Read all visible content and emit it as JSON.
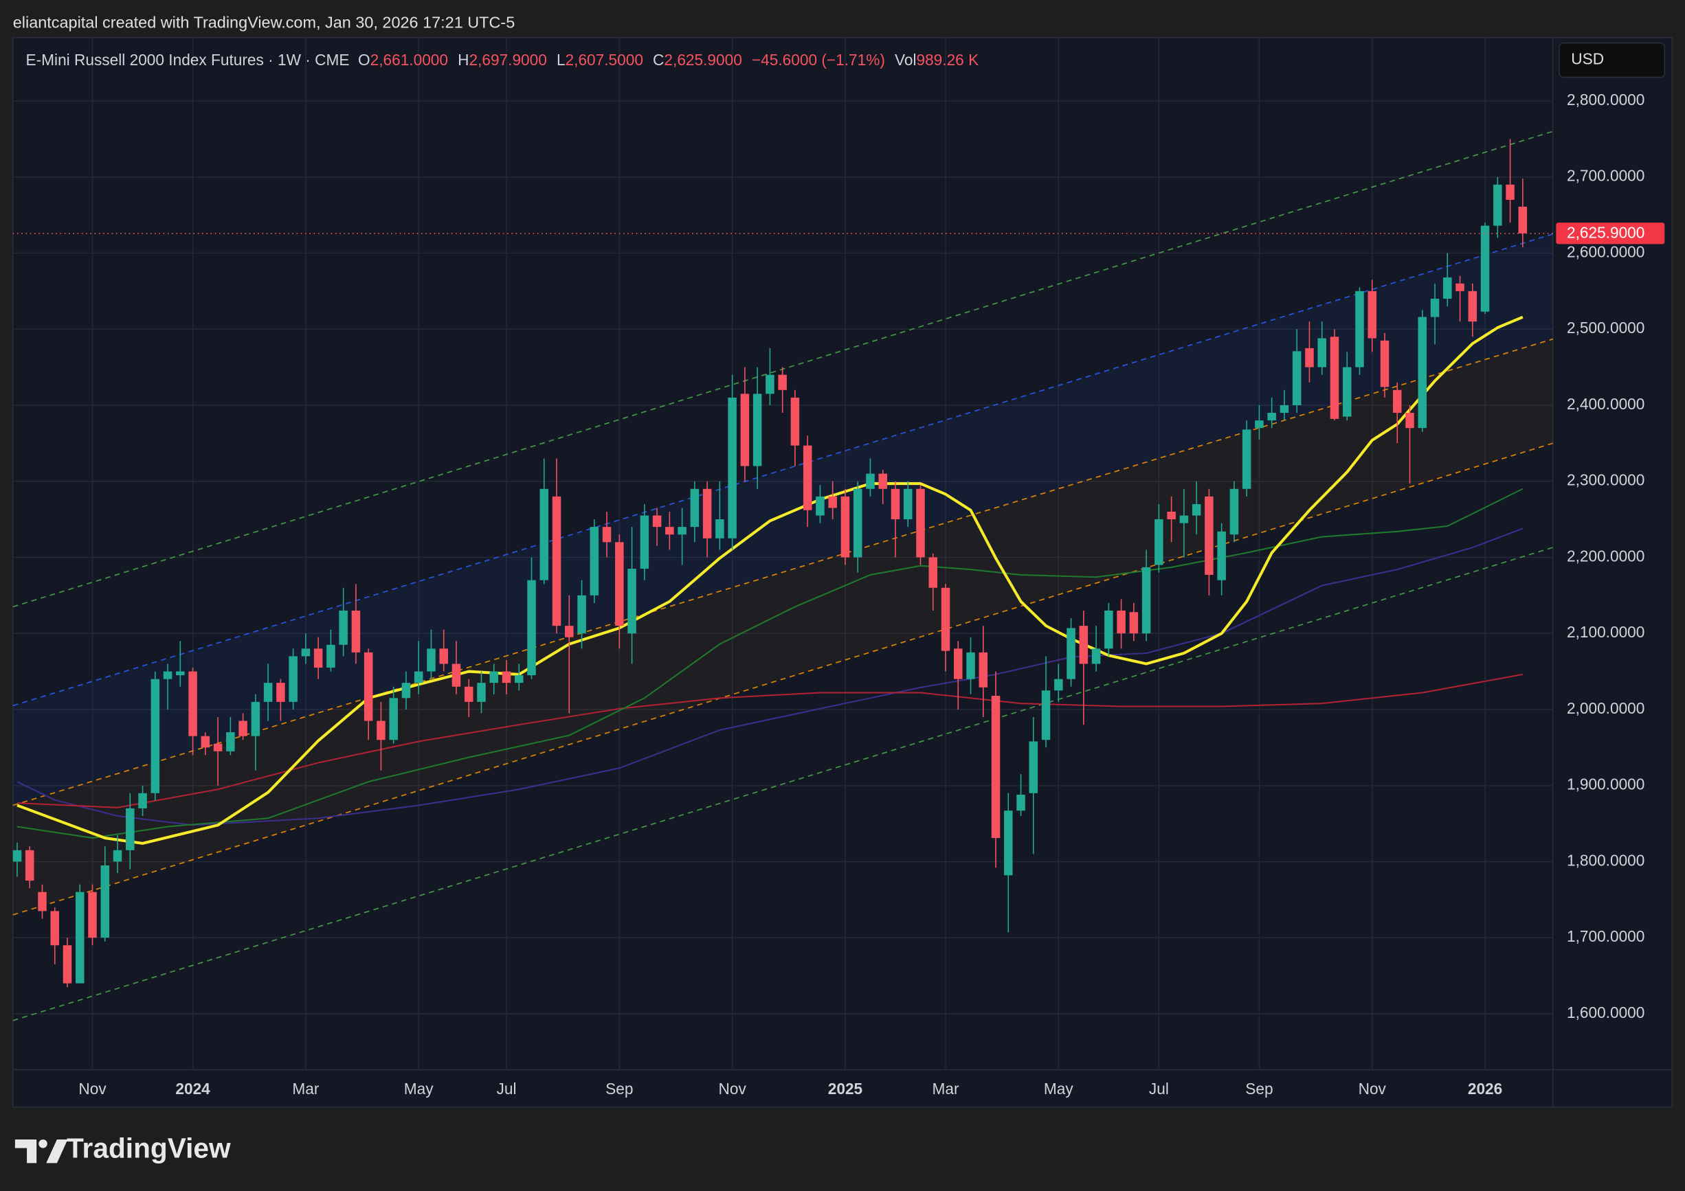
{
  "header": {
    "attribution": "eliantcapital created with TradingView.com, Jan 30, 2026 17:21 UTC-5"
  },
  "legend": {
    "symbol": "E-Mini Russell 2000 Index Futures · 1W · CME",
    "open_key": "O",
    "open": "2,661.0000",
    "high_key": "H",
    "high": "2,697.9000",
    "low_key": "L",
    "low": "2,607.5000",
    "close_key": "C",
    "close": "2,625.9000",
    "change": "−45.6000 (−1.71%)",
    "volume_key": "Vol",
    "volume": "989.26 K"
  },
  "currency": "USD",
  "footer": {
    "logo": "TradingView"
  },
  "chart_data": {
    "type": "candlestick",
    "up_color": "#22ab94",
    "down_color": "#f7525f",
    "grid": true,
    "categories": [
      null,
      null,
      null,
      null,
      null,
      null,
      "Nov",
      null,
      null,
      null,
      null,
      null,
      null,
      null,
      "2024",
      null,
      null,
      null,
      null,
      null,
      null,
      null,
      null,
      "Mar",
      null,
      null,
      null,
      null,
      null,
      null,
      null,
      null,
      "May",
      null,
      null,
      null,
      null,
      null,
      null,
      "Jul",
      null,
      null,
      null,
      null,
      null,
      null,
      null,
      null,
      "Sep",
      null,
      null,
      null,
      null,
      null,
      null,
      null,
      null,
      "Nov",
      null,
      null,
      null,
      null,
      null,
      null,
      null,
      null,
      "2025",
      null,
      null,
      null,
      null,
      null,
      null,
      null,
      "Mar",
      null,
      null,
      null,
      null,
      null,
      null,
      null,
      null,
      "May",
      null,
      null,
      null,
      null,
      null,
      null,
      null,
      "Jul",
      null,
      null,
      null,
      null,
      null,
      null,
      null,
      "Sep",
      null,
      null,
      null,
      null,
      null,
      null,
      null,
      null,
      "Nov",
      null,
      null,
      null,
      null,
      null,
      null,
      null,
      null,
      "2026",
      null,
      null,
      null
    ],
    "candles": [
      [
        1800,
        1825,
        1780,
        1815
      ],
      [
        1815,
        1820,
        1765,
        1775
      ],
      [
        1760,
        1770,
        1725,
        1735
      ],
      [
        1735,
        1740,
        1665,
        1690
      ],
      [
        1690,
        1700,
        1635,
        1640
      ],
      [
        1640,
        1770,
        1640,
        1760
      ],
      [
        1760,
        1770,
        1690,
        1700
      ],
      [
        1700,
        1820,
        1695,
        1795
      ],
      [
        1800,
        1835,
        1785,
        1815
      ],
      [
        1815,
        1890,
        1790,
        1870
      ],
      [
        1870,
        1900,
        1860,
        1890
      ],
      [
        1890,
        2050,
        1880,
        2040
      ],
      [
        2040,
        2060,
        2000,
        2050
      ],
      [
        2045,
        2090,
        2030,
        2050
      ],
      [
        2050,
        2055,
        1940,
        1965
      ],
      [
        1965,
        1970,
        1940,
        1950
      ],
      [
        1955,
        1990,
        1900,
        1945
      ],
      [
        1945,
        1990,
        1940,
        1970
      ],
      [
        1985,
        1995,
        1960,
        1965
      ],
      [
        1965,
        2020,
        1920,
        2010
      ],
      [
        2010,
        2060,
        1985,
        2035
      ],
      [
        2035,
        2040,
        1985,
        2010
      ],
      [
        2010,
        2080,
        2000,
        2070
      ],
      [
        2070,
        2100,
        2060,
        2080
      ],
      [
        2080,
        2095,
        2040,
        2055
      ],
      [
        2055,
        2105,
        2050,
        2085
      ],
      [
        2085,
        2160,
        2070,
        2130
      ],
      [
        2130,
        2165,
        2060,
        2075
      ],
      [
        2075,
        2080,
        1960,
        1985
      ],
      [
        1985,
        2010,
        1920,
        1960
      ],
      [
        1960,
        2030,
        1955,
        2015
      ],
      [
        2015,
        2050,
        2000,
        2035
      ],
      [
        2035,
        2090,
        2020,
        2050
      ],
      [
        2050,
        2105,
        2040,
        2080
      ],
      [
        2080,
        2105,
        2050,
        2060
      ],
      [
        2060,
        2090,
        2020,
        2030
      ],
      [
        2030,
        2040,
        1990,
        2010
      ],
      [
        2010,
        2050,
        1995,
        2035
      ],
      [
        2035,
        2060,
        2020,
        2050
      ],
      [
        2050,
        2065,
        2020,
        2035
      ],
      [
        2035,
        2060,
        2025,
        2045
      ],
      [
        2045,
        2200,
        2040,
        2170
      ],
      [
        2170,
        2330,
        2165,
        2290
      ],
      [
        2280,
        2330,
        2100,
        2110
      ],
      [
        2110,
        2150,
        1995,
        2095
      ],
      [
        2100,
        2170,
        2080,
        2150
      ],
      [
        2150,
        2250,
        2140,
        2240
      ],
      [
        2240,
        2260,
        2200,
        2220
      ],
      [
        2220,
        2230,
        2080,
        2110
      ],
      [
        2100,
        2240,
        2060,
        2185
      ],
      [
        2185,
        2270,
        2170,
        2255
      ],
      [
        2255,
        2265,
        2215,
        2240
      ],
      [
        2240,
        2260,
        2210,
        2230
      ],
      [
        2230,
        2265,
        2190,
        2240
      ],
      [
        2240,
        2300,
        2220,
        2290
      ],
      [
        2290,
        2300,
        2200,
        2225
      ],
      [
        2225,
        2300,
        2210,
        2250
      ],
      [
        2225,
        2440,
        2210,
        2410
      ],
      [
        2415,
        2450,
        2300,
        2320
      ],
      [
        2320,
        2450,
        2290,
        2415
      ],
      [
        2415,
        2475,
        2400,
        2440
      ],
      [
        2440,
        2450,
        2390,
        2420
      ],
      [
        2410,
        2420,
        2320,
        2347
      ],
      [
        2347,
        2360,
        2240,
        2262
      ],
      [
        2255,
        2295,
        2245,
        2280
      ],
      [
        2280,
        2300,
        2250,
        2265
      ],
      [
        2280,
        2290,
        2190,
        2200
      ],
      [
        2200,
        2300,
        2180,
        2290
      ],
      [
        2290,
        2330,
        2280,
        2310
      ],
      [
        2310,
        2315,
        2270,
        2290
      ],
      [
        2290,
        2300,
        2200,
        2250
      ],
      [
        2250,
        2300,
        2240,
        2290
      ],
      [
        2290,
        2295,
        2190,
        2200
      ],
      [
        2200,
        2205,
        2130,
        2160
      ],
      [
        2160,
        2165,
        2050,
        2077
      ],
      [
        2080,
        2090,
        2000,
        2040
      ],
      [
        2040,
        2095,
        2020,
        2075
      ],
      [
        2075,
        2110,
        1990,
        2029
      ],
      [
        2018,
        2050,
        1792,
        1831
      ],
      [
        1782,
        1890,
        1707,
        1867
      ],
      [
        1867,
        1915,
        1860,
        1888
      ],
      [
        1890,
        1990,
        1810,
        1958
      ],
      [
        1960,
        2070,
        1950,
        2025
      ],
      [
        2025,
        2060,
        2010,
        2040
      ],
      [
        2040,
        2120,
        2030,
        2107
      ],
      [
        2110,
        2130,
        1980,
        2060
      ],
      [
        2060,
        2110,
        2050,
        2080
      ],
      [
        2080,
        2140,
        2070,
        2130
      ],
      [
        2130,
        2145,
        2080,
        2100
      ],
      [
        2128,
        2140,
        2090,
        2100
      ],
      [
        2100,
        2210,
        2090,
        2187
      ],
      [
        2190,
        2270,
        2180,
        2250
      ],
      [
        2260,
        2280,
        2220,
        2250
      ],
      [
        2245,
        2290,
        2200,
        2255
      ],
      [
        2255,
        2300,
        2230,
        2270
      ],
      [
        2280,
        2290,
        2150,
        2177
      ],
      [
        2170,
        2245,
        2150,
        2234
      ],
      [
        2230,
        2300,
        2220,
        2290
      ],
      [
        2290,
        2380,
        2280,
        2368
      ],
      [
        2370,
        2400,
        2355,
        2380
      ],
      [
        2380,
        2410,
        2370,
        2390
      ],
      [
        2390,
        2420,
        2380,
        2400
      ],
      [
        2400,
        2500,
        2390,
        2471
      ],
      [
        2475,
        2510,
        2430,
        2450
      ],
      [
        2450,
        2510,
        2440,
        2488
      ],
      [
        2490,
        2500,
        2380,
        2382
      ],
      [
        2385,
        2470,
        2380,
        2450
      ],
      [
        2450,
        2555,
        2440,
        2550
      ],
      [
        2550,
        2565,
        2470,
        2488
      ],
      [
        2485,
        2495,
        2410,
        2424
      ],
      [
        2420,
        2430,
        2350,
        2390
      ],
      [
        2390,
        2400,
        2297,
        2370
      ],
      [
        2370,
        2525,
        2365,
        2516
      ],
      [
        2516,
        2560,
        2480,
        2540
      ],
      [
        2540,
        2600,
        2530,
        2568
      ],
      [
        2560,
        2570,
        2510,
        2550
      ],
      [
        2550,
        2560,
        2490,
        2510
      ],
      [
        2523,
        2640,
        2520,
        2636
      ],
      [
        2636,
        2700,
        2620,
        2690
      ],
      [
        2690,
        2750,
        2640,
        2670
      ],
      [
        2661,
        2697.9,
        2607.5,
        2625.9
      ]
    ],
    "moving_averages": [
      {
        "color": "#3d2e8f",
        "width": 1.3,
        "x": [
          0,
          3,
          8,
          14,
          24,
          32,
          40,
          48,
          56,
          64,
          72,
          78,
          84,
          90,
          96,
          104,
          110,
          116,
          120
        ],
        "values": [
          1905,
          1881,
          1860,
          1848,
          1857,
          1874,
          1895,
          1923,
          1973,
          2001,
          2029,
          2046,
          2069,
          2074,
          2100,
          2163,
          2184,
          2213,
          2238
        ]
      },
      {
        "color": "#b22234",
        "width": 1.3,
        "x": [
          0,
          8,
          16,
          24,
          32,
          40,
          48,
          56,
          64,
          72,
          80,
          88,
          96,
          104,
          112,
          120
        ],
        "values": [
          1877,
          1871,
          1895,
          1930,
          1958,
          1980,
          2001,
          2015,
          2022,
          2022,
          2008,
          2004,
          2004,
          2008,
          2022,
          2046
        ]
      },
      {
        "color": "#1f7a2e",
        "width": 1.3,
        "x": [
          0,
          6,
          12,
          20,
          28,
          36,
          44,
          50,
          56,
          62,
          68,
          72,
          76,
          80,
          86,
          92,
          98,
          104,
          110,
          114,
          120
        ],
        "values": [
          1846,
          1831,
          1846,
          1857,
          1905,
          1937,
          1966,
          2015,
          2086,
          2135,
          2177,
          2189,
          2184,
          2177,
          2174,
          2187,
          2206,
          2227,
          2234,
          2241,
          2290
        ]
      },
      {
        "color": "#f5eb2a",
        "width": 2.6,
        "x": [
          0,
          7,
          10,
          16,
          20,
          24,
          28,
          32,
          36,
          40,
          44,
          48,
          52,
          56,
          60,
          64,
          68,
          72,
          74,
          76,
          78,
          80,
          82,
          84,
          87,
          90,
          93,
          96,
          98,
          100,
          103,
          106,
          108,
          110,
          113,
          116,
          118,
          120
        ],
        "values": [
          1874,
          1831,
          1824,
          1848,
          1891,
          1959,
          2015,
          2033,
          2050,
          2046,
          2086,
          2107,
          2142,
          2199,
          2248,
          2276,
          2297,
          2297,
          2283,
          2262,
          2199,
          2142,
          2110,
          2093,
          2071,
          2060,
          2074,
          2100,
          2142,
          2206,
          2262,
          2312,
          2354,
          2375,
          2432,
          2481,
          2502,
          2516
        ]
      }
    ],
    "channel_lines": [
      {
        "color": "#4caf50",
        "values": [
          2135,
          2760
        ]
      },
      {
        "color": "#2962ff",
        "values": [
          2005,
          2625
        ]
      },
      {
        "color": "#ff9800",
        "values": [
          1874,
          2487
        ]
      },
      {
        "color": "#ff9800",
        "values": [
          1730,
          2350
        ]
      },
      {
        "color": "#4caf50",
        "values": [
          1591,
          2213
        ]
      }
    ],
    "last_price": {
      "value": 2625.9,
      "label": "2,625.9000"
    },
    "xlim": [
      -0.34,
      122.4
    ],
    "ylim": [
      1526.5,
      2883.3
    ],
    "yticks": [
      {
        "value": 1600,
        "label": "1,600.0000"
      },
      {
        "value": 1700,
        "label": "1,700.0000"
      },
      {
        "value": 1800,
        "label": "1,800.0000"
      },
      {
        "value": 1900,
        "label": "1,900.0000"
      },
      {
        "value": 2000,
        "label": "2,000.0000"
      },
      {
        "value": 2100,
        "label": "2,100.0000"
      },
      {
        "value": 2200,
        "label": "2,200.0000"
      },
      {
        "value": 2300,
        "label": "2,300.0000"
      },
      {
        "value": 2400,
        "label": "2,400.0000"
      },
      {
        "value": 2500,
        "label": "2,500.0000"
      },
      {
        "value": 2600,
        "label": "2,600.0000"
      },
      {
        "value": 2700,
        "label": "2,700.0000"
      },
      {
        "value": 2800,
        "label": "2,800.0000"
      }
    ]
  }
}
